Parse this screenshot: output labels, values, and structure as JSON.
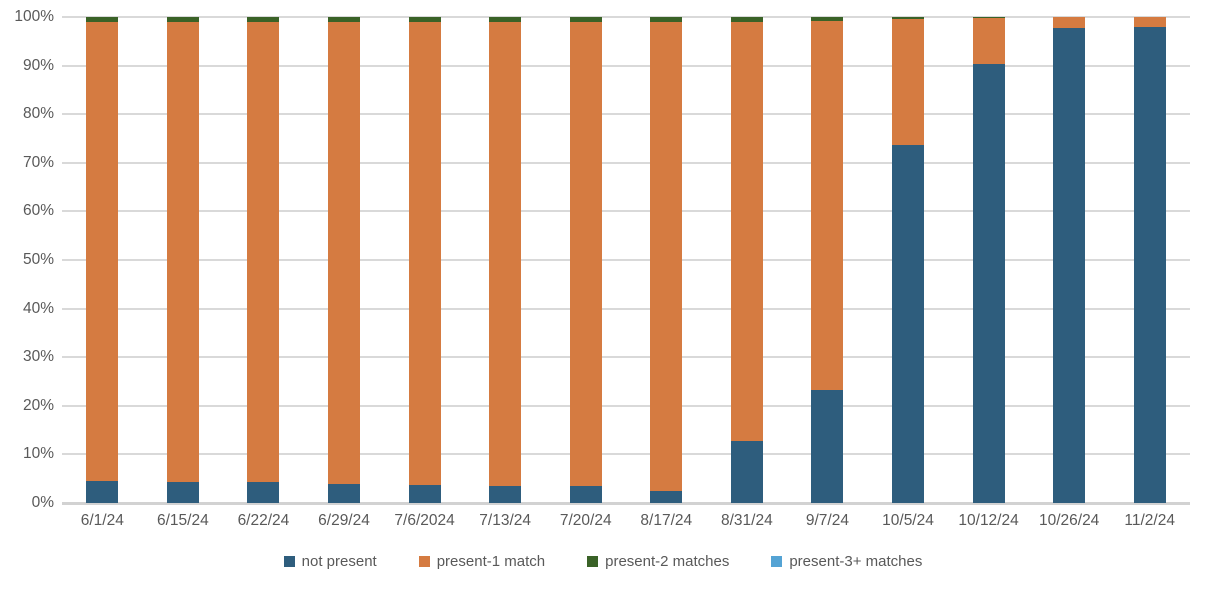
{
  "chart_data": {
    "type": "bar",
    "stacked": true,
    "percent_stacked": true,
    "title": "",
    "xlabel": "",
    "ylabel": "",
    "ylim": [
      0,
      100
    ],
    "grid": true,
    "legend_position": "bottom",
    "y_ticks": [
      "0%",
      "10%",
      "20%",
      "30%",
      "40%",
      "50%",
      "60%",
      "70%",
      "80%",
      "90%",
      "100%"
    ],
    "categories": [
      "6/1/24",
      "6/15/24",
      "6/22/24",
      "6/29/24",
      "7/6/2024",
      "7/13/24",
      "7/20/24",
      "8/17/24",
      "8/31/24",
      "9/7/24",
      "10/5/24",
      "10/12/24",
      "10/26/24",
      "11/2/24"
    ],
    "series": [
      {
        "name": "not present",
        "color": "#2E5D7D",
        "values": [
          4.5,
          4.3,
          4.3,
          4.0,
          3.8,
          3.6,
          3.4,
          2.4,
          12.7,
          23.3,
          73.7,
          90.3,
          97.7,
          97.9
        ]
      },
      {
        "name": "present-1 match",
        "color": "#D57B41",
        "values": [
          94.5,
          94.7,
          94.7,
          95.0,
          95.2,
          95.4,
          95.6,
          96.6,
          86.3,
          75.9,
          25.8,
          9.4,
          2.3,
          2.1
        ]
      },
      {
        "name": "present-2 matches",
        "color": "#3A6227",
        "values": [
          1.0,
          1.0,
          1.0,
          1.0,
          1.0,
          1.0,
          1.0,
          1.0,
          1.0,
          0.8,
          0.5,
          0.3,
          0.0,
          0.0
        ]
      },
      {
        "name": "present-3+ matches",
        "color": "#54A3D4",
        "values": [
          0,
          0,
          0,
          0,
          0,
          0,
          0,
          0,
          0,
          0,
          0,
          0,
          0,
          0
        ]
      }
    ]
  },
  "colors": {
    "gridline": "#D9D9D9",
    "axis_line": "#D2D2D2",
    "axis_text": "#595959",
    "background": "#FFFFFF"
  }
}
